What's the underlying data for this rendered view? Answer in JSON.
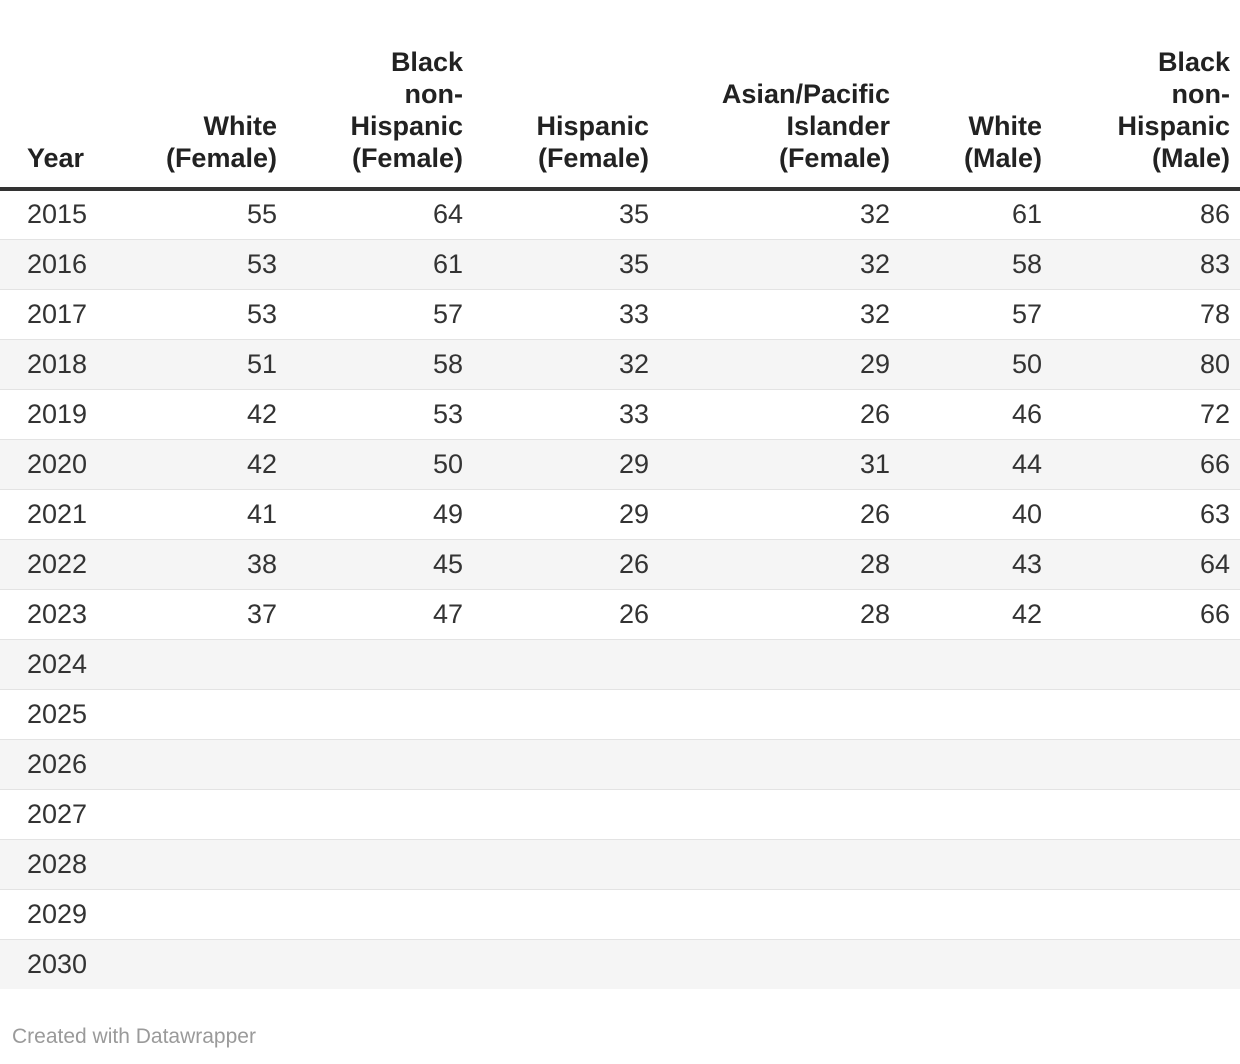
{
  "table": {
    "columns": [
      {
        "label": "Year"
      },
      {
        "label": "White\n(Female)"
      },
      {
        "label": "Black\nnon-\nHispanic\n(Female)"
      },
      {
        "label": "Hispanic\n(Female)"
      },
      {
        "label": "Asian/Pacific\nIslander\n(Female)"
      },
      {
        "label": "White\n(Male)"
      },
      {
        "label": "Black\nnon-\nHispanic\n(Male)"
      }
    ],
    "rows": [
      {
        "year": "2015",
        "values": [
          "55",
          "64",
          "35",
          "32",
          "61",
          "86"
        ]
      },
      {
        "year": "2016",
        "values": [
          "53",
          "61",
          "35",
          "32",
          "58",
          "83"
        ]
      },
      {
        "year": "2017",
        "values": [
          "53",
          "57",
          "33",
          "32",
          "57",
          "78"
        ]
      },
      {
        "year": "2018",
        "values": [
          "51",
          "58",
          "32",
          "29",
          "50",
          "80"
        ]
      },
      {
        "year": "2019",
        "values": [
          "42",
          "53",
          "33",
          "26",
          "46",
          "72"
        ]
      },
      {
        "year": "2020",
        "values": [
          "42",
          "50",
          "29",
          "31",
          "44",
          "66"
        ]
      },
      {
        "year": "2021",
        "values": [
          "41",
          "49",
          "29",
          "26",
          "40",
          "63"
        ]
      },
      {
        "year": "2022",
        "values": [
          "38",
          "45",
          "26",
          "28",
          "43",
          "64"
        ]
      },
      {
        "year": "2023",
        "values": [
          "37",
          "47",
          "26",
          "28",
          "42",
          "66"
        ]
      },
      {
        "year": "2024",
        "values": [
          "",
          "",
          "",
          "",
          "",
          ""
        ]
      },
      {
        "year": "2025",
        "values": [
          "",
          "",
          "",
          "",
          "",
          ""
        ]
      },
      {
        "year": "2026",
        "values": [
          "",
          "",
          "",
          "",
          "",
          ""
        ]
      },
      {
        "year": "2027",
        "values": [
          "",
          "",
          "",
          "",
          "",
          ""
        ]
      },
      {
        "year": "2028",
        "values": [
          "",
          "",
          "",
          "",
          "",
          ""
        ]
      },
      {
        "year": "2029",
        "values": [
          "",
          "",
          "",
          "",
          "",
          ""
        ]
      },
      {
        "year": "2030",
        "values": [
          "",
          "",
          "",
          "",
          "",
          ""
        ]
      }
    ]
  },
  "footer": {
    "attribution": "Created with Datawrapper"
  },
  "colors": {
    "row_stripe": "#f5f5f5",
    "header_rule": "#333333",
    "row_separator": "#e3e3e3",
    "text": "#333333",
    "footer_text": "#9a9a9a"
  },
  "chart_data": {
    "type": "table",
    "title": "",
    "categories": [
      "2015",
      "2016",
      "2017",
      "2018",
      "2019",
      "2020",
      "2021",
      "2022",
      "2023",
      "2024",
      "2025",
      "2026",
      "2027",
      "2028",
      "2029",
      "2030"
    ],
    "series": [
      {
        "name": "White (Female)",
        "values": [
          55,
          53,
          53,
          51,
          42,
          42,
          41,
          38,
          37,
          null,
          null,
          null,
          null,
          null,
          null,
          null
        ]
      },
      {
        "name": "Black non-Hispanic (Female)",
        "values": [
          64,
          61,
          57,
          58,
          53,
          50,
          49,
          45,
          47,
          null,
          null,
          null,
          null,
          null,
          null,
          null
        ]
      },
      {
        "name": "Hispanic (Female)",
        "values": [
          35,
          35,
          33,
          32,
          33,
          29,
          29,
          26,
          26,
          null,
          null,
          null,
          null,
          null,
          null,
          null
        ]
      },
      {
        "name": "Asian/Pacific Islander (Female)",
        "values": [
          32,
          32,
          32,
          29,
          26,
          31,
          26,
          28,
          28,
          null,
          null,
          null,
          null,
          null,
          null,
          null
        ]
      },
      {
        "name": "White (Male)",
        "values": [
          61,
          58,
          57,
          50,
          46,
          44,
          40,
          43,
          42,
          null,
          null,
          null,
          null,
          null,
          null,
          null
        ]
      },
      {
        "name": "Black non-Hispanic (Male)",
        "values": [
          86,
          83,
          78,
          80,
          72,
          66,
          63,
          64,
          66,
          null,
          null,
          null,
          null,
          null,
          null,
          null
        ]
      }
    ],
    "layout_hints": "striped table, header bottom-aligned with thick top rule under header, last column clipped at right edge of viewport, rows 2024-2030 empty"
  }
}
